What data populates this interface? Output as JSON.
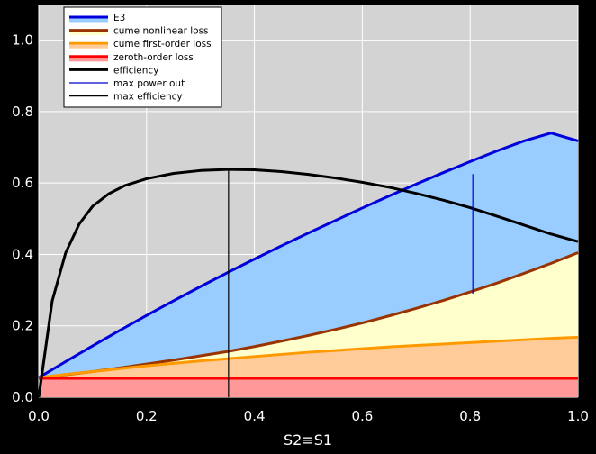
{
  "chart_data": {
    "type": "area",
    "title": "",
    "xlabel": "S2≡S1",
    "ylabel": "",
    "xlim": [
      0.0,
      1.0
    ],
    "ylim": [
      0.0,
      1.1
    ],
    "xticks": [
      "0.0",
      "0.2",
      "0.4",
      "0.6",
      "0.8",
      "1.0"
    ],
    "yticks": [
      "0.0",
      "0.2",
      "0.4",
      "0.6",
      "0.8",
      "1.0"
    ],
    "grid": true,
    "legend_position": "top-left",
    "x": [
      0.0,
      0.05,
      0.1,
      0.15,
      0.2,
      0.25,
      0.3,
      0.35,
      0.4,
      0.45,
      0.5,
      0.55,
      0.6,
      0.65,
      0.7,
      0.75,
      0.8,
      0.85,
      0.9,
      0.95,
      1.0
    ],
    "series": [
      {
        "name": "E3",
        "kind": "fill-line",
        "color": "#0000dd",
        "fill": "#99ccff",
        "values": [
          0.055,
          0.1,
          0.144,
          0.187,
          0.229,
          0.27,
          0.31,
          0.349,
          0.387,
          0.424,
          0.46,
          0.495,
          0.53,
          0.564,
          0.597,
          0.629,
          0.66,
          0.69,
          0.718,
          0.74,
          0.718
        ]
      },
      {
        "name": "cume nonlinear loss",
        "kind": "fill-line",
        "color": "#993300",
        "fill": "#ffffcc",
        "values": [
          0.055,
          0.063,
          0.072,
          0.082,
          0.093,
          0.104,
          0.116,
          0.128,
          0.142,
          0.157,
          0.173,
          0.19,
          0.208,
          0.228,
          0.249,
          0.271,
          0.295,
          0.32,
          0.347,
          0.375,
          0.405
        ]
      },
      {
        "name": "cume first-order loss",
        "kind": "fill-line",
        "color": "#ff9900",
        "fill": "#ffcc99",
        "values": [
          0.055,
          0.064,
          0.072,
          0.08,
          0.088,
          0.095,
          0.102,
          0.108,
          0.114,
          0.12,
          0.126,
          0.131,
          0.136,
          0.141,
          0.145,
          0.149,
          0.153,
          0.157,
          0.161,
          0.165,
          0.168
        ]
      },
      {
        "name": "zeroth-order loss",
        "kind": "fill-line",
        "color": "#ff0000",
        "fill": "#ff9999",
        "values": [
          0.053,
          0.053,
          0.053,
          0.053,
          0.053,
          0.053,
          0.053,
          0.053,
          0.053,
          0.053,
          0.053,
          0.053,
          0.053,
          0.053,
          0.053,
          0.053,
          0.053,
          0.053,
          0.053,
          0.053,
          0.053
        ]
      },
      {
        "name": "efficiency",
        "kind": "line",
        "color": "#000000",
        "x": [
          0.0,
          0.025,
          0.05,
          0.075,
          0.1,
          0.13,
          0.16,
          0.2,
          0.25,
          0.3,
          0.35,
          0.4,
          0.45,
          0.5,
          0.55,
          0.6,
          0.65,
          0.7,
          0.75,
          0.8,
          0.85,
          0.9,
          0.95,
          1.0
        ],
        "values": [
          0.0,
          0.27,
          0.405,
          0.485,
          0.535,
          0.57,
          0.593,
          0.612,
          0.627,
          0.635,
          0.638,
          0.637,
          0.632,
          0.624,
          0.614,
          0.602,
          0.588,
          0.571,
          0.552,
          0.531,
          0.507,
          0.482,
          0.457,
          0.436
        ]
      },
      {
        "name": "max power out",
        "kind": "vline",
        "color": "#0000cc",
        "x": 0.805,
        "y_from": 0.29,
        "y_to": 0.625
      },
      {
        "name": "max efficiency",
        "kind": "vline",
        "color": "#000000",
        "x": 0.352,
        "y_from": 0.0,
        "y_to": 0.638
      }
    ]
  },
  "colors": {
    "plot_background": "#d3d3d3",
    "page_background": "#000000",
    "grid": "#ffffff"
  }
}
